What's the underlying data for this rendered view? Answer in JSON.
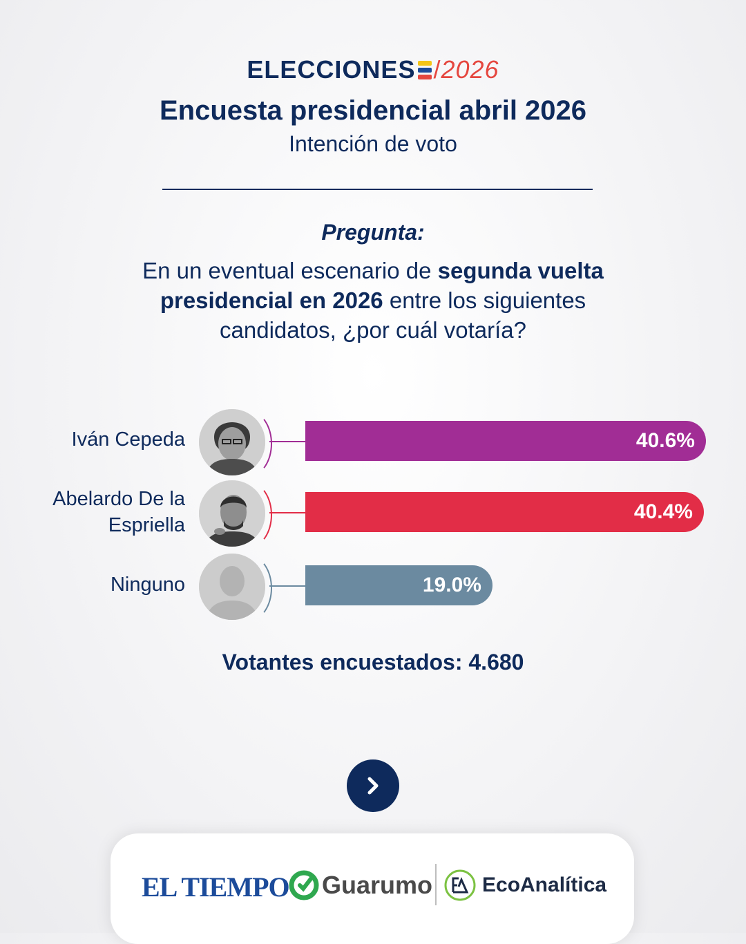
{
  "header": {
    "brand_left": "ELECCIONES",
    "brand_year": "2026",
    "title": "Encuesta presidencial abril 2026",
    "subtitle": "Intención de voto"
  },
  "question": {
    "label": "Pregunta:",
    "text_pre": "En un eventual escenario de ",
    "text_bold": "segunda vuelta presidencial en 2026",
    "text_post": " entre los siguientes candidatos, ¿por cuál votaría?"
  },
  "chart_data": {
    "type": "bar",
    "orientation": "horizontal",
    "categories": [
      "Iván Cepeda",
      "Abelardo De la Espriella",
      "Ninguno"
    ],
    "values": [
      40.6,
      40.4,
      19.0
    ],
    "value_labels": [
      "40.6%",
      "40.4%",
      "19.0%"
    ],
    "colors": [
      "#a12d95",
      "#e22d47",
      "#6b8aa0"
    ],
    "xlim": [
      0,
      40.6
    ]
  },
  "rows": [
    {
      "name": "Iván Cepeda",
      "photo_icon": "person-photo-icon"
    },
    {
      "name": "Abelardo De la Espriella",
      "photo_icon": "person-photo-icon"
    },
    {
      "name": "Ninguno",
      "photo_icon": "person-silhouette-icon"
    }
  ],
  "total": "Votantes encuestados: 4.680",
  "next_button_icon": "chevron-right-icon",
  "footer": {
    "logo_1": "EL TIEMPO",
    "logo_2": "Guarumo",
    "logo_3": "EcoAnalítica"
  },
  "colors": {
    "navy": "#0e2a5c",
    "accent_red": "#e5473f"
  }
}
